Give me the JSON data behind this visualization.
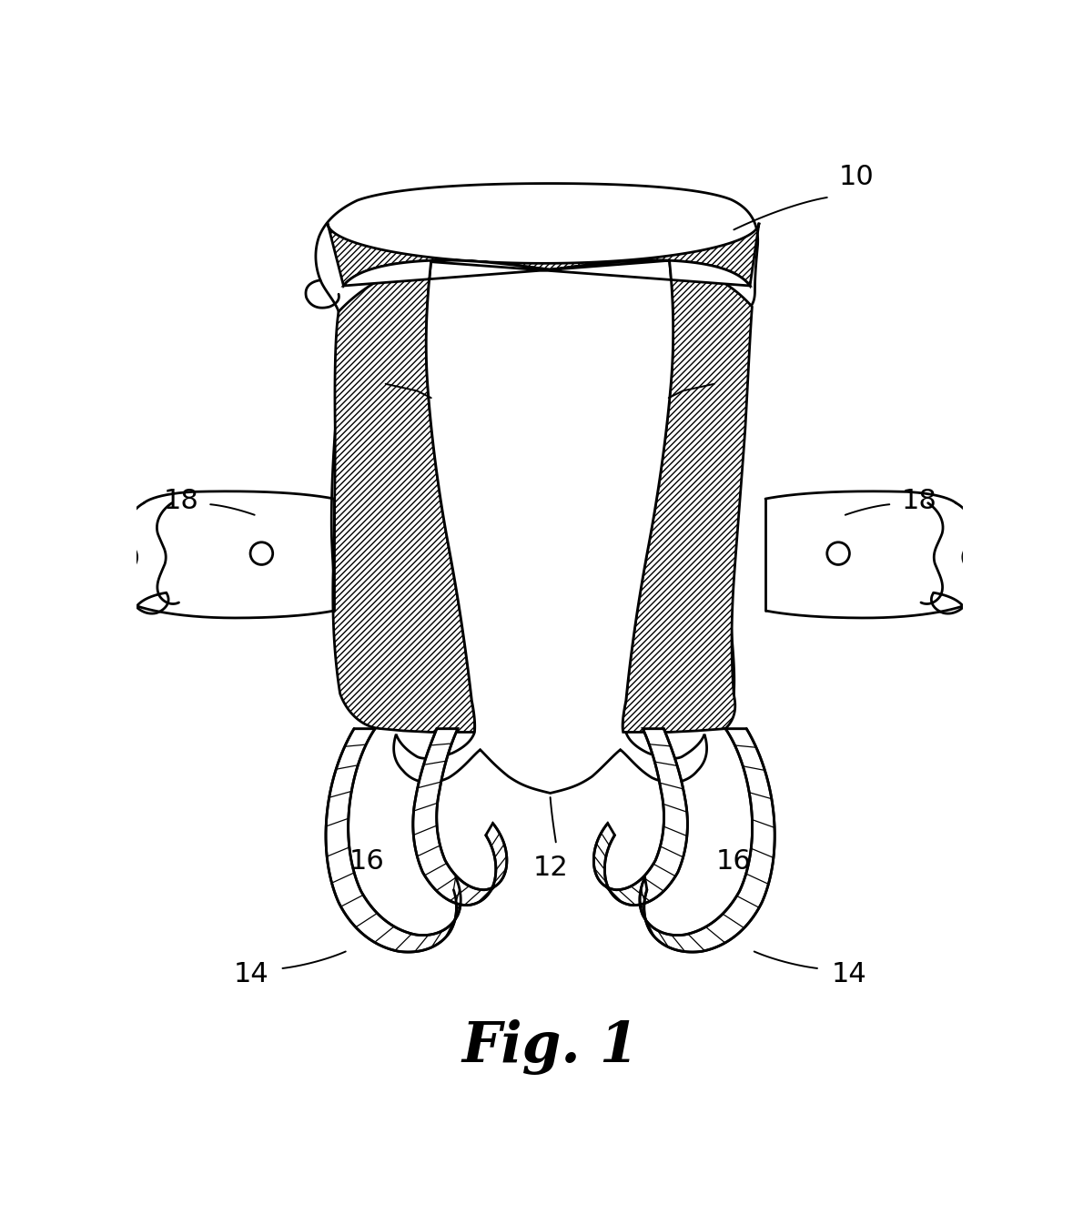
{
  "title": "Fig. 1",
  "bg": "#ffffff",
  "lc": "#000000",
  "lw": 2.0,
  "fig_fontsize": 44,
  "label_fontsize": 22
}
